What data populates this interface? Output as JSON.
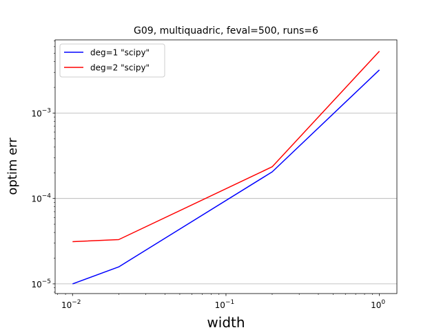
{
  "chart_data": {
    "type": "line",
    "title": "G09, multiquadric, feval=500, runs=6",
    "xlabel": "width",
    "ylabel": "optim err",
    "xscale": "log",
    "yscale": "log",
    "xlim": [
      0.0077,
      1.3
    ],
    "ylim": [
      7.7e-06,
      0.0072
    ],
    "x": [
      0.01,
      0.02,
      0.2,
      1.0
    ],
    "grid": {
      "x": false,
      "y": true
    },
    "legend": "top-left",
    "xticks": [
      {
        "value": 0.01,
        "base": "10",
        "exp": "−2"
      },
      {
        "value": 0.1,
        "base": "10",
        "exp": "−1"
      },
      {
        "value": 1,
        "base": "10",
        "exp": "0"
      }
    ],
    "yticks": [
      {
        "value": 1e-05,
        "base": "10",
        "exp": "−5"
      },
      {
        "value": 0.0001,
        "base": "10",
        "exp": "−4"
      },
      {
        "value": 0.001,
        "base": "10",
        "exp": "−3"
      }
    ],
    "series": [
      {
        "name": "deg=1 \"scipy\"",
        "color": "#0000ff",
        "values": [
          1e-05,
          1.58e-05,
          0.000205,
          0.0032
        ]
      },
      {
        "name": "deg=2 \"scipy\"",
        "color": "#ff0000",
        "values": [
          3.12e-05,
          3.3e-05,
          0.000235,
          0.0053
        ]
      }
    ]
  }
}
